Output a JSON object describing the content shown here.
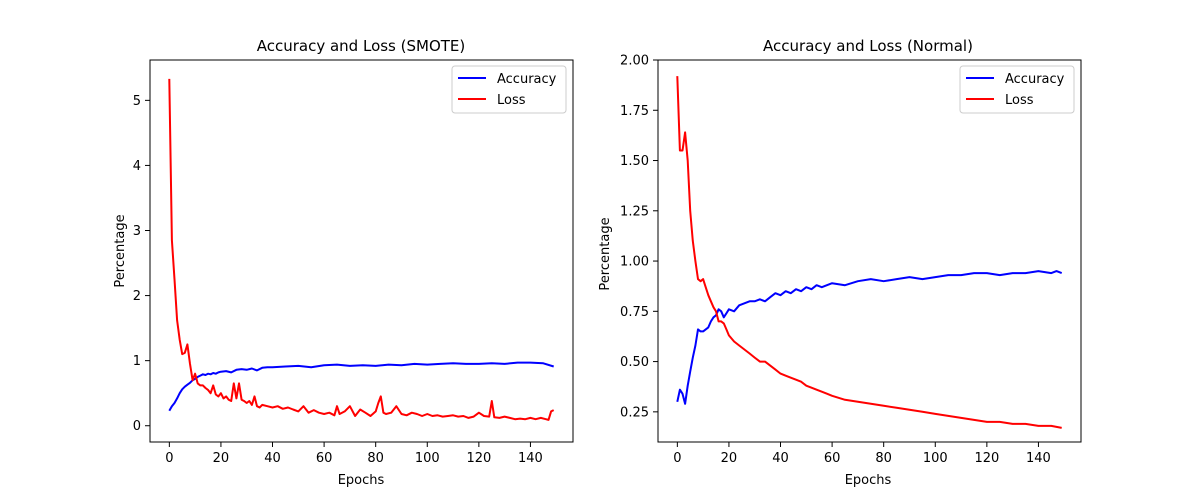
{
  "chart_data": [
    {
      "type": "line",
      "title": "Accuracy and Loss (SMOTE)",
      "xlabel": "Epochs",
      "ylabel": "Percentage",
      "xlim": [
        -7.5,
        156.5
      ],
      "ylim": [
        -0.25,
        5.62
      ],
      "xticks": [
        0,
        20,
        40,
        60,
        80,
        100,
        120,
        140
      ],
      "xtick_labels": [
        "0",
        "20",
        "40",
        "60",
        "80",
        "100",
        "120",
        "140"
      ],
      "yticks": [
        0,
        1,
        2,
        3,
        4,
        5
      ],
      "ytick_labels": [
        "0",
        "1",
        "2",
        "3",
        "4",
        "5"
      ],
      "grid": false,
      "legend_position": "top-right",
      "colors": {
        "accuracy": "#0000ff",
        "loss": "#ff0000"
      },
      "series": [
        {
          "name": "Accuracy",
          "color": "#0000ff",
          "x": [
            0,
            1,
            2,
            3,
            4,
            5,
            6,
            7,
            8,
            9,
            10,
            11,
            12,
            13,
            14,
            15,
            16,
            17,
            18,
            19,
            20,
            22,
            24,
            26,
            28,
            30,
            32,
            34,
            36,
            38,
            40,
            45,
            50,
            55,
            60,
            65,
            70,
            75,
            80,
            85,
            90,
            95,
            100,
            105,
            110,
            115,
            120,
            125,
            130,
            135,
            140,
            145,
            149
          ],
          "y": [
            0.23,
            0.3,
            0.35,
            0.42,
            0.5,
            0.56,
            0.6,
            0.63,
            0.66,
            0.7,
            0.72,
            0.75,
            0.77,
            0.79,
            0.78,
            0.8,
            0.79,
            0.81,
            0.8,
            0.82,
            0.83,
            0.84,
            0.82,
            0.86,
            0.87,
            0.86,
            0.88,
            0.85,
            0.89,
            0.9,
            0.9,
            0.91,
            0.92,
            0.9,
            0.93,
            0.94,
            0.92,
            0.93,
            0.92,
            0.94,
            0.93,
            0.95,
            0.94,
            0.95,
            0.96,
            0.95,
            0.95,
            0.96,
            0.95,
            0.97,
            0.97,
            0.96,
            0.91
          ]
        },
        {
          "name": "Loss",
          "color": "#ff0000",
          "x": [
            0,
            1,
            2,
            3,
            4,
            5,
            6,
            7,
            8,
            9,
            10,
            11,
            12,
            13,
            14,
            15,
            16,
            17,
            18,
            19,
            20,
            21,
            22,
            23,
            24,
            25,
            26,
            27,
            28,
            29,
            30,
            31,
            32,
            33,
            34,
            35,
            36,
            38,
            40,
            42,
            44,
            46,
            48,
            50,
            52,
            54,
            56,
            58,
            60,
            62,
            64,
            65,
            66,
            68,
            70,
            72,
            74,
            76,
            78,
            80,
            81,
            82,
            83,
            84,
            86,
            88,
            90,
            92,
            94,
            96,
            98,
            100,
            102,
            104,
            106,
            108,
            110,
            112,
            114,
            116,
            118,
            120,
            122,
            124,
            125,
            126,
            128,
            130,
            132,
            134,
            136,
            138,
            140,
            142,
            144,
            146,
            147,
            148,
            149
          ],
          "y": [
            5.33,
            2.85,
            2.25,
            1.62,
            1.32,
            1.1,
            1.12,
            1.25,
            0.95,
            0.7,
            0.8,
            0.65,
            0.62,
            0.62,
            0.58,
            0.55,
            0.5,
            0.62,
            0.48,
            0.45,
            0.5,
            0.42,
            0.45,
            0.4,
            0.38,
            0.65,
            0.42,
            0.65,
            0.4,
            0.38,
            0.35,
            0.38,
            0.32,
            0.45,
            0.3,
            0.28,
            0.32,
            0.3,
            0.28,
            0.3,
            0.26,
            0.28,
            0.25,
            0.22,
            0.3,
            0.2,
            0.24,
            0.2,
            0.18,
            0.2,
            0.16,
            0.3,
            0.18,
            0.22,
            0.3,
            0.15,
            0.25,
            0.2,
            0.15,
            0.22,
            0.35,
            0.45,
            0.2,
            0.18,
            0.2,
            0.3,
            0.18,
            0.16,
            0.2,
            0.18,
            0.15,
            0.18,
            0.15,
            0.16,
            0.14,
            0.15,
            0.16,
            0.14,
            0.15,
            0.12,
            0.14,
            0.2,
            0.15,
            0.14,
            0.38,
            0.13,
            0.12,
            0.14,
            0.12,
            0.1,
            0.11,
            0.1,
            0.12,
            0.1,
            0.12,
            0.1,
            0.09,
            0.22,
            0.24
          ]
        }
      ]
    },
    {
      "type": "line",
      "title": "Accuracy and Loss (Normal)",
      "xlabel": "Epochs",
      "ylabel": "Percentage",
      "xlim": [
        -7.5,
        156.5
      ],
      "ylim": [
        0.1,
        2.0
      ],
      "xticks": [
        0,
        20,
        40,
        60,
        80,
        100,
        120,
        140
      ],
      "xtick_labels": [
        "0",
        "20",
        "40",
        "60",
        "80",
        "100",
        "120",
        "140"
      ],
      "yticks": [
        0.25,
        0.5,
        0.75,
        1.0,
        1.25,
        1.5,
        1.75,
        2.0
      ],
      "ytick_labels": [
        "0.25",
        "0.50",
        "0.75",
        "1.00",
        "1.25",
        "1.50",
        "1.75",
        "2.00"
      ],
      "grid": false,
      "legend_position": "top-right",
      "colors": {
        "accuracy": "#0000ff",
        "loss": "#ff0000"
      },
      "series": [
        {
          "name": "Accuracy",
          "color": "#0000ff",
          "x": [
            0,
            1,
            2,
            3,
            4,
            5,
            6,
            7,
            8,
            9,
            10,
            11,
            12,
            13,
            14,
            15,
            16,
            17,
            18,
            19,
            20,
            22,
            24,
            26,
            28,
            30,
            32,
            34,
            36,
            38,
            40,
            42,
            44,
            46,
            48,
            50,
            52,
            54,
            56,
            58,
            60,
            65,
            70,
            75,
            80,
            85,
            90,
            95,
            100,
            105,
            110,
            115,
            120,
            125,
            130,
            135,
            140,
            145,
            147,
            149
          ],
          "y": [
            0.3,
            0.36,
            0.34,
            0.29,
            0.38,
            0.45,
            0.52,
            0.58,
            0.66,
            0.65,
            0.65,
            0.66,
            0.67,
            0.7,
            0.72,
            0.73,
            0.76,
            0.75,
            0.72,
            0.74,
            0.76,
            0.75,
            0.78,
            0.79,
            0.8,
            0.8,
            0.81,
            0.8,
            0.82,
            0.84,
            0.83,
            0.85,
            0.84,
            0.86,
            0.85,
            0.87,
            0.86,
            0.88,
            0.87,
            0.88,
            0.89,
            0.88,
            0.9,
            0.91,
            0.9,
            0.91,
            0.92,
            0.91,
            0.92,
            0.93,
            0.93,
            0.94,
            0.94,
            0.93,
            0.94,
            0.94,
            0.95,
            0.94,
            0.95,
            0.94
          ]
        },
        {
          "name": "Loss",
          "color": "#ff0000",
          "x": [
            0,
            1,
            2,
            3,
            4,
            5,
            6,
            7,
            8,
            9,
            10,
            11,
            12,
            13,
            14,
            15,
            16,
            17,
            18,
            19,
            20,
            22,
            24,
            26,
            28,
            30,
            32,
            34,
            36,
            38,
            40,
            42,
            44,
            46,
            48,
            50,
            52,
            54,
            56,
            58,
            60,
            65,
            70,
            75,
            80,
            85,
            90,
            95,
            100,
            105,
            110,
            115,
            120,
            125,
            130,
            135,
            140,
            145,
            149
          ],
          "y": [
            1.92,
            1.55,
            1.55,
            1.64,
            1.5,
            1.25,
            1.1,
            1.0,
            0.91,
            0.9,
            0.91,
            0.87,
            0.83,
            0.8,
            0.77,
            0.75,
            0.7,
            0.7,
            0.69,
            0.66,
            0.63,
            0.6,
            0.58,
            0.56,
            0.54,
            0.52,
            0.5,
            0.5,
            0.48,
            0.46,
            0.44,
            0.43,
            0.42,
            0.41,
            0.4,
            0.38,
            0.37,
            0.36,
            0.35,
            0.34,
            0.33,
            0.31,
            0.3,
            0.29,
            0.28,
            0.27,
            0.26,
            0.25,
            0.24,
            0.23,
            0.22,
            0.21,
            0.2,
            0.2,
            0.19,
            0.19,
            0.18,
            0.18,
            0.17
          ]
        }
      ]
    }
  ]
}
